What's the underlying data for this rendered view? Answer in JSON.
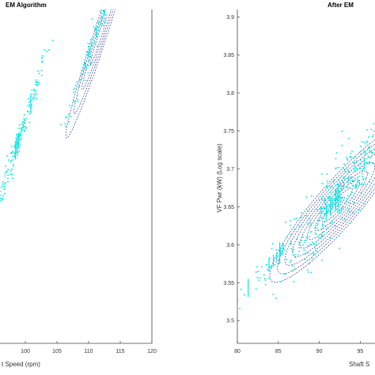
{
  "chart_data": [
    {
      "type": "scatter",
      "title": "EM Algorithm",
      "xlabel": "t Speed (rpm)",
      "ylabel": "",
      "x_ticks": [
        "100",
        "105",
        "110",
        "115",
        "120"
      ],
      "y_ticks": [],
      "xlim": [
        96,
        120
      ],
      "ylim": [
        0,
        1
      ],
      "grid": false,
      "point_color": "#00e5e5",
      "contour_color": "#1a237e",
      "scatter_clusters": [
        {
          "name": "",
          "center": [
            98.8,
            0.6
          ],
          "spread_x": 2.6,
          "spread_y": 0.045,
          "slope": 0.058,
          "count": 170
        },
        {
          "name": "",
          "center": [
            111,
            0.92
          ],
          "spread_x": 2.2,
          "spread_y": 0.04,
          "slope": 0.055,
          "count": 120
        }
      ],
      "contour_ellipses": [
        {
          "center": [
            111.5,
            0.905
          ],
          "semi_major": 5.0,
          "semi_minor": 0.02,
          "slope": 0.058,
          "levels": 4
        }
      ]
    },
    {
      "type": "scatter",
      "title": "After EM",
      "xlabel": "Shaft S",
      "ylabel": "VF Pwr (kW) (Log scale)",
      "x_ticks": [
        "80",
        "85",
        "90",
        "95"
      ],
      "y_ticks": [
        "3.5",
        "3.55",
        "3.6",
        "3.65",
        "3.7",
        "3.75",
        "3.8",
        "3.85",
        "3.9"
      ],
      "xlim": [
        80,
        96.8
      ],
      "ylim": [
        3.47,
        3.91
      ],
      "grid": false,
      "point_color": "#00e5e5",
      "contour_color": "#1a237e",
      "scatter_clusters": [
        {
          "name": "",
          "center": [
            92,
            3.66
          ],
          "spread_x": 3.0,
          "spread_y": 0.05,
          "slope": 0.0135,
          "count": 380
        },
        {
          "name": "",
          "center": [
            84,
            3.575
          ],
          "spread_x": 2.0,
          "spread_y": 0.03,
          "slope": 0.012,
          "count": 45
        }
      ],
      "contour_ellipses": [
        {
          "center": [
            92.2,
            3.652
          ],
          "semi_major": 8.0,
          "semi_minor": 0.028,
          "slope": 0.0125,
          "levels": 9
        }
      ]
    }
  ]
}
